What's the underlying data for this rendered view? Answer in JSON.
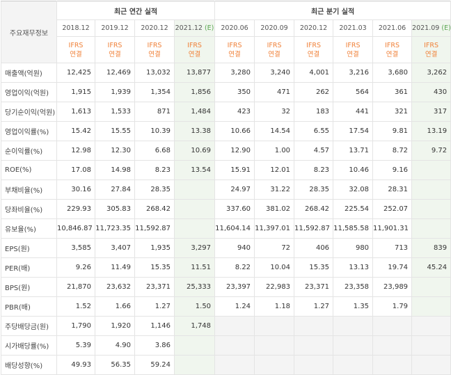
{
  "corner_label": "주요재무정보",
  "groups": {
    "annual": "최근 연간 실적",
    "quarterly": "최근 분기 실적"
  },
  "periods": [
    {
      "label": "2018.12",
      "est": ""
    },
    {
      "label": "2019.12",
      "est": ""
    },
    {
      "label": "2020.12",
      "est": ""
    },
    {
      "label": "2021.12",
      "est": "(E)"
    },
    {
      "label": "2020.06",
      "est": ""
    },
    {
      "label": "2020.09",
      "est": ""
    },
    {
      "label": "2020.12",
      "est": ""
    },
    {
      "label": "2021.03",
      "est": ""
    },
    {
      "label": "2021.06",
      "est": ""
    },
    {
      "label": "2021.09",
      "est": "(E)"
    }
  ],
  "ifrs": {
    "line1": "IFRS",
    "line2": "연결"
  },
  "colors": {
    "estimate_bg": "#f0f6ee",
    "ifrs_text": "#f0823a",
    "estimate_mark": "#5aa650",
    "empty_bg": "#f4f4f4"
  },
  "rows": [
    {
      "label": "매출액(억원)",
      "values": [
        "12,425",
        "12,469",
        "13,032",
        "13,877",
        "3,280",
        "3,240",
        "4,001",
        "3,216",
        "3,680",
        "3,262"
      ]
    },
    {
      "label": "영업이익(억원)",
      "values": [
        "1,915",
        "1,939",
        "1,354",
        "1,856",
        "350",
        "471",
        "262",
        "564",
        "361",
        "430"
      ]
    },
    {
      "label": "당기순이익(억원)",
      "values": [
        "1,613",
        "1,533",
        "871",
        "1,484",
        "423",
        "32",
        "183",
        "441",
        "321",
        "317"
      ]
    },
    {
      "label": "영업이익률(%)",
      "values": [
        "15.42",
        "15.55",
        "10.39",
        "13.38",
        "10.66",
        "14.54",
        "6.55",
        "17.54",
        "9.81",
        "13.19"
      ]
    },
    {
      "label": "순이익률(%)",
      "values": [
        "12.98",
        "12.30",
        "6.68",
        "10.69",
        "12.90",
        "1.00",
        "4.57",
        "13.71",
        "8.72",
        "9.72"
      ]
    },
    {
      "label": "ROE(%)",
      "values": [
        "17.08",
        "14.98",
        "8.23",
        "13.54",
        "15.91",
        "12.01",
        "8.23",
        "10.46",
        "9.16",
        ""
      ]
    },
    {
      "label": "부채비율(%)",
      "values": [
        "30.16",
        "27.84",
        "28.35",
        "",
        "24.97",
        "31.22",
        "28.35",
        "32.08",
        "28.31",
        ""
      ]
    },
    {
      "label": "당좌비율(%)",
      "values": [
        "229.93",
        "305.83",
        "268.42",
        "",
        "337.60",
        "381.02",
        "268.42",
        "225.54",
        "252.07",
        ""
      ]
    },
    {
      "label": "유보율(%)",
      "values": [
        "10,846.87",
        "11,723.35",
        "11,592.87",
        "",
        "11,604.14",
        "11,397.01",
        "11,592.87",
        "11,585.58",
        "11,901.31",
        ""
      ]
    },
    {
      "label": "EPS(원)",
      "values": [
        "3,585",
        "3,407",
        "1,935",
        "3,297",
        "940",
        "72",
        "406",
        "980",
        "713",
        "839"
      ]
    },
    {
      "label": "PER(배)",
      "values": [
        "9.26",
        "11.49",
        "15.35",
        "11.51",
        "8.22",
        "10.04",
        "15.35",
        "13.13",
        "19.74",
        "45.24"
      ]
    },
    {
      "label": "BPS(원)",
      "values": [
        "21,870",
        "23,632",
        "23,371",
        "25,333",
        "23,397",
        "22,983",
        "23,371",
        "23,358",
        "23,989",
        ""
      ]
    },
    {
      "label": "PBR(배)",
      "values": [
        "1.52",
        "1.66",
        "1.27",
        "1.50",
        "1.24",
        "1.18",
        "1.27",
        "1.35",
        "1.79",
        ""
      ]
    },
    {
      "label": "주당배당금(원)",
      "values": [
        "1,790",
        "1,920",
        "1,146",
        "1,748",
        "",
        "",
        "",
        "",
        "",
        ""
      ]
    },
    {
      "label": "시가배당률(%)",
      "values": [
        "5.39",
        "4.90",
        "3.86",
        "",
        "",
        "",
        "",
        "",
        "",
        ""
      ]
    },
    {
      "label": "배당성향(%)",
      "values": [
        "49.93",
        "56.35",
        "59.24",
        "",
        "",
        "",
        "",
        "",
        "",
        ""
      ]
    }
  ]
}
